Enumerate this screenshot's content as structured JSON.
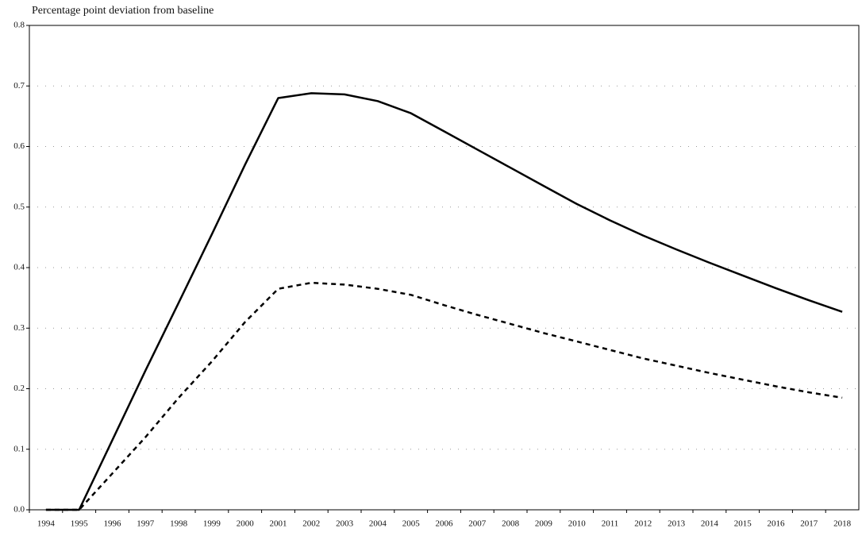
{
  "chart_data": {
    "type": "line",
    "title": "Percentage point deviation from baseline",
    "categories": [
      "1994",
      "1995",
      "1996",
      "1997",
      "1998",
      "1999",
      "2000",
      "2001",
      "2002",
      "2003",
      "2004",
      "2005",
      "2006",
      "2007",
      "2008",
      "2009",
      "2010",
      "2011",
      "2012",
      "2013",
      "2014",
      "2015",
      "2016",
      "2017",
      "2018"
    ],
    "series": [
      {
        "color": "#000000",
        "dash": false,
        "values": [
          0,
          0,
          0.115,
          0.23,
          0.342,
          0.455,
          0.57,
          0.68,
          0.688,
          0.686,
          0.675,
          0.655,
          0.625,
          0.595,
          0.565,
          0.535,
          0.505,
          0.478,
          0.453,
          0.43,
          0.408,
          0.387,
          0.366,
          0.346,
          0.327
        ]
      },
      {
        "color": "#000000",
        "dash": true,
        "values": [
          0,
          0,
          0.06,
          0.12,
          0.185,
          0.245,
          0.31,
          0.365,
          0.375,
          0.372,
          0.365,
          0.355,
          0.338,
          0.322,
          0.307,
          0.292,
          0.278,
          0.264,
          0.25,
          0.238,
          0.226,
          0.215,
          0.204,
          0.194,
          0.185
        ]
      }
    ],
    "ylim": [
      0,
      0.8
    ],
    "yticks": [
      {
        "value": 0,
        "label": "0.0"
      },
      0.1,
      0.2,
      0.3,
      0.4,
      0.5,
      0.6,
      0.7,
      0.8
    ],
    "grid": true
  }
}
